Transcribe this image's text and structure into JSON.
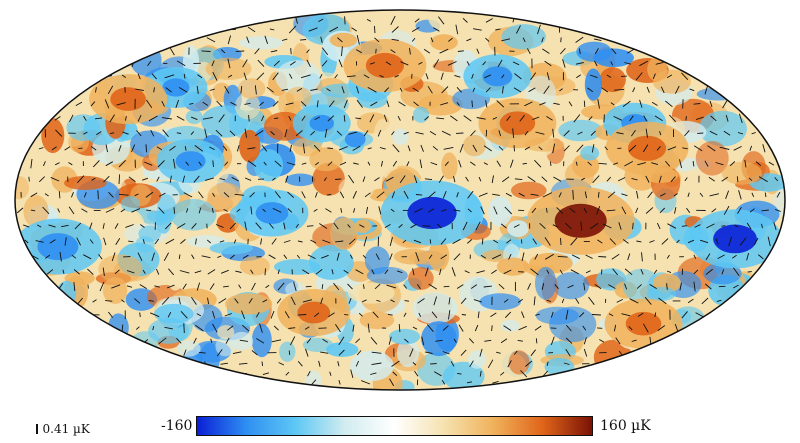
{
  "map": {
    "projection": "mollweide",
    "grid": false,
    "colors": {
      "cold_deep": "#0a1fd6",
      "cold": "#2f8ff2",
      "cool": "#5ec8f4",
      "neutral_cool": "#d2ecef",
      "neutral_warm": "#f5e2b0",
      "warm": "#f0b25c",
      "hot": "#e0651a",
      "hot_deep": "#7a1206",
      "outline": "#111111",
      "vector": "#111111"
    },
    "cold_spots": [
      {
        "lon": -15,
        "lat": -5,
        "amp": 150
      },
      {
        "lon": -160,
        "lat": -15,
        "amp": 130
      },
      {
        "lon": 165,
        "lat": -18,
        "amp": 120
      },
      {
        "lon": 60,
        "lat": -5,
        "amp": 90
      },
      {
        "lon": -60,
        "lat": 50,
        "amp": 80
      },
      {
        "lon": 100,
        "lat": 15,
        "amp": 80
      },
      {
        "lon": 40,
        "lat": 30,
        "amp": 60
      },
      {
        "lon": -120,
        "lat": 30,
        "amp": 70
      },
      {
        "lon": 130,
        "lat": 45,
        "amp": 70
      }
    ],
    "hot_spots": [
      {
        "lon": -85,
        "lat": -8,
        "amp": 160
      },
      {
        "lon": -120,
        "lat": 20,
        "amp": 110
      },
      {
        "lon": -60,
        "lat": 30,
        "amp": 100
      },
      {
        "lon": 150,
        "lat": 40,
        "amp": 100
      },
      {
        "lon": 10,
        "lat": 55,
        "amp": 110
      },
      {
        "lon": 50,
        "lat": -45,
        "amp": 90
      },
      {
        "lon": -150,
        "lat": -50,
        "amp": 100
      }
    ]
  },
  "colorbar": {
    "min_label": "-160",
    "max_label": "160 µK",
    "min_value": -160,
    "max_value": 160,
    "unit": "µK"
  },
  "scale_key": {
    "label": "0.41 µK",
    "value": 0.41,
    "unit": "µK"
  }
}
